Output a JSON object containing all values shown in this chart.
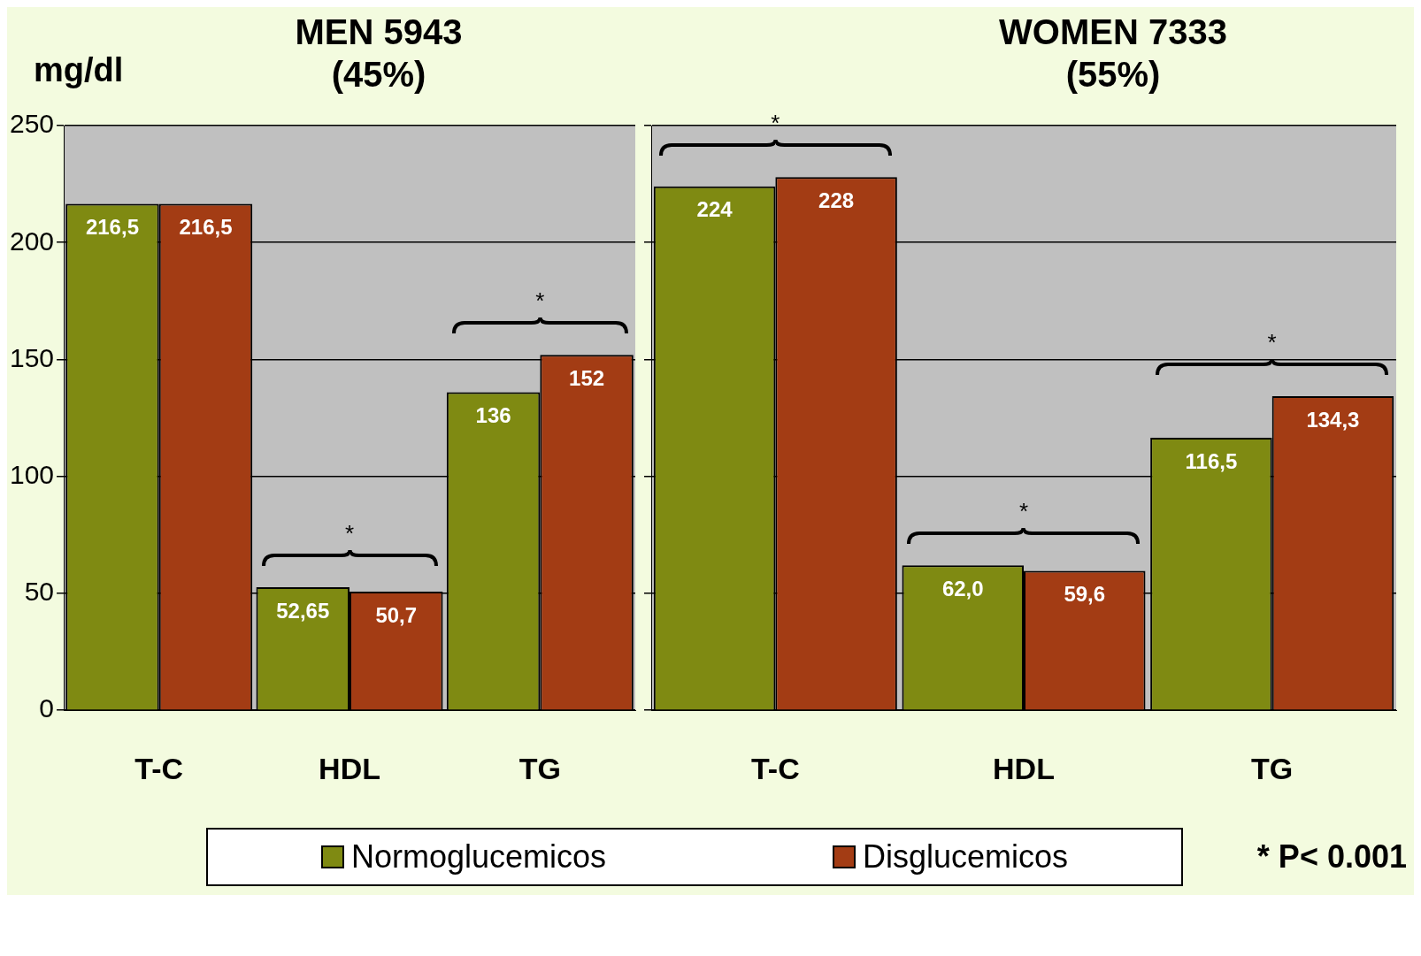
{
  "chart_data": [
    {
      "type": "bar",
      "title": "MEN 5943\n(45%)",
      "ylabel": "mg/dl",
      "categories": [
        "T-C",
        "HDL",
        "TG"
      ],
      "series": [
        {
          "name": "Normoglucemicos",
          "color": "#7f8a12",
          "values": [
            216.5,
            52.65,
            136
          ],
          "value_labels": [
            "216,5",
            "52,65",
            "136"
          ]
        },
        {
          "name": "Disglucemicos",
          "color": "#a33c14",
          "values": [
            216.5,
            50.7,
            152
          ],
          "value_labels": [
            "216,5",
            "50,7",
            "152"
          ]
        }
      ],
      "ylim": [
        0,
        250
      ],
      "yticks": [
        0,
        50,
        100,
        150,
        200,
        250
      ],
      "grid": "y",
      "legend": "bottom",
      "annotations": [
        "*",
        "*"
      ]
    },
    {
      "type": "bar",
      "title": "WOMEN 7333\n(55%)",
      "categories": [
        "T-C",
        "HDL",
        "TG"
      ],
      "series": [
        {
          "color": "#7f8a12",
          "values": [
            224,
            62.0,
            116.5
          ],
          "value_labels": [
            "224",
            "62,0",
            "116,5"
          ]
        },
        {
          "color": "#a33c14",
          "values": [
            228,
            59.6,
            134.3
          ],
          "value_labels": [
            "228",
            "59,6",
            "134,3"
          ]
        }
      ],
      "ylim": [
        0,
        250
      ],
      "yticks": [
        0,
        50,
        100,
        150,
        200,
        250
      ],
      "grid": "y",
      "tick_labels": "x",
      "annotations": [
        "*",
        "*",
        "*",
        "* P< 0.001"
      ]
    }
  ]
}
